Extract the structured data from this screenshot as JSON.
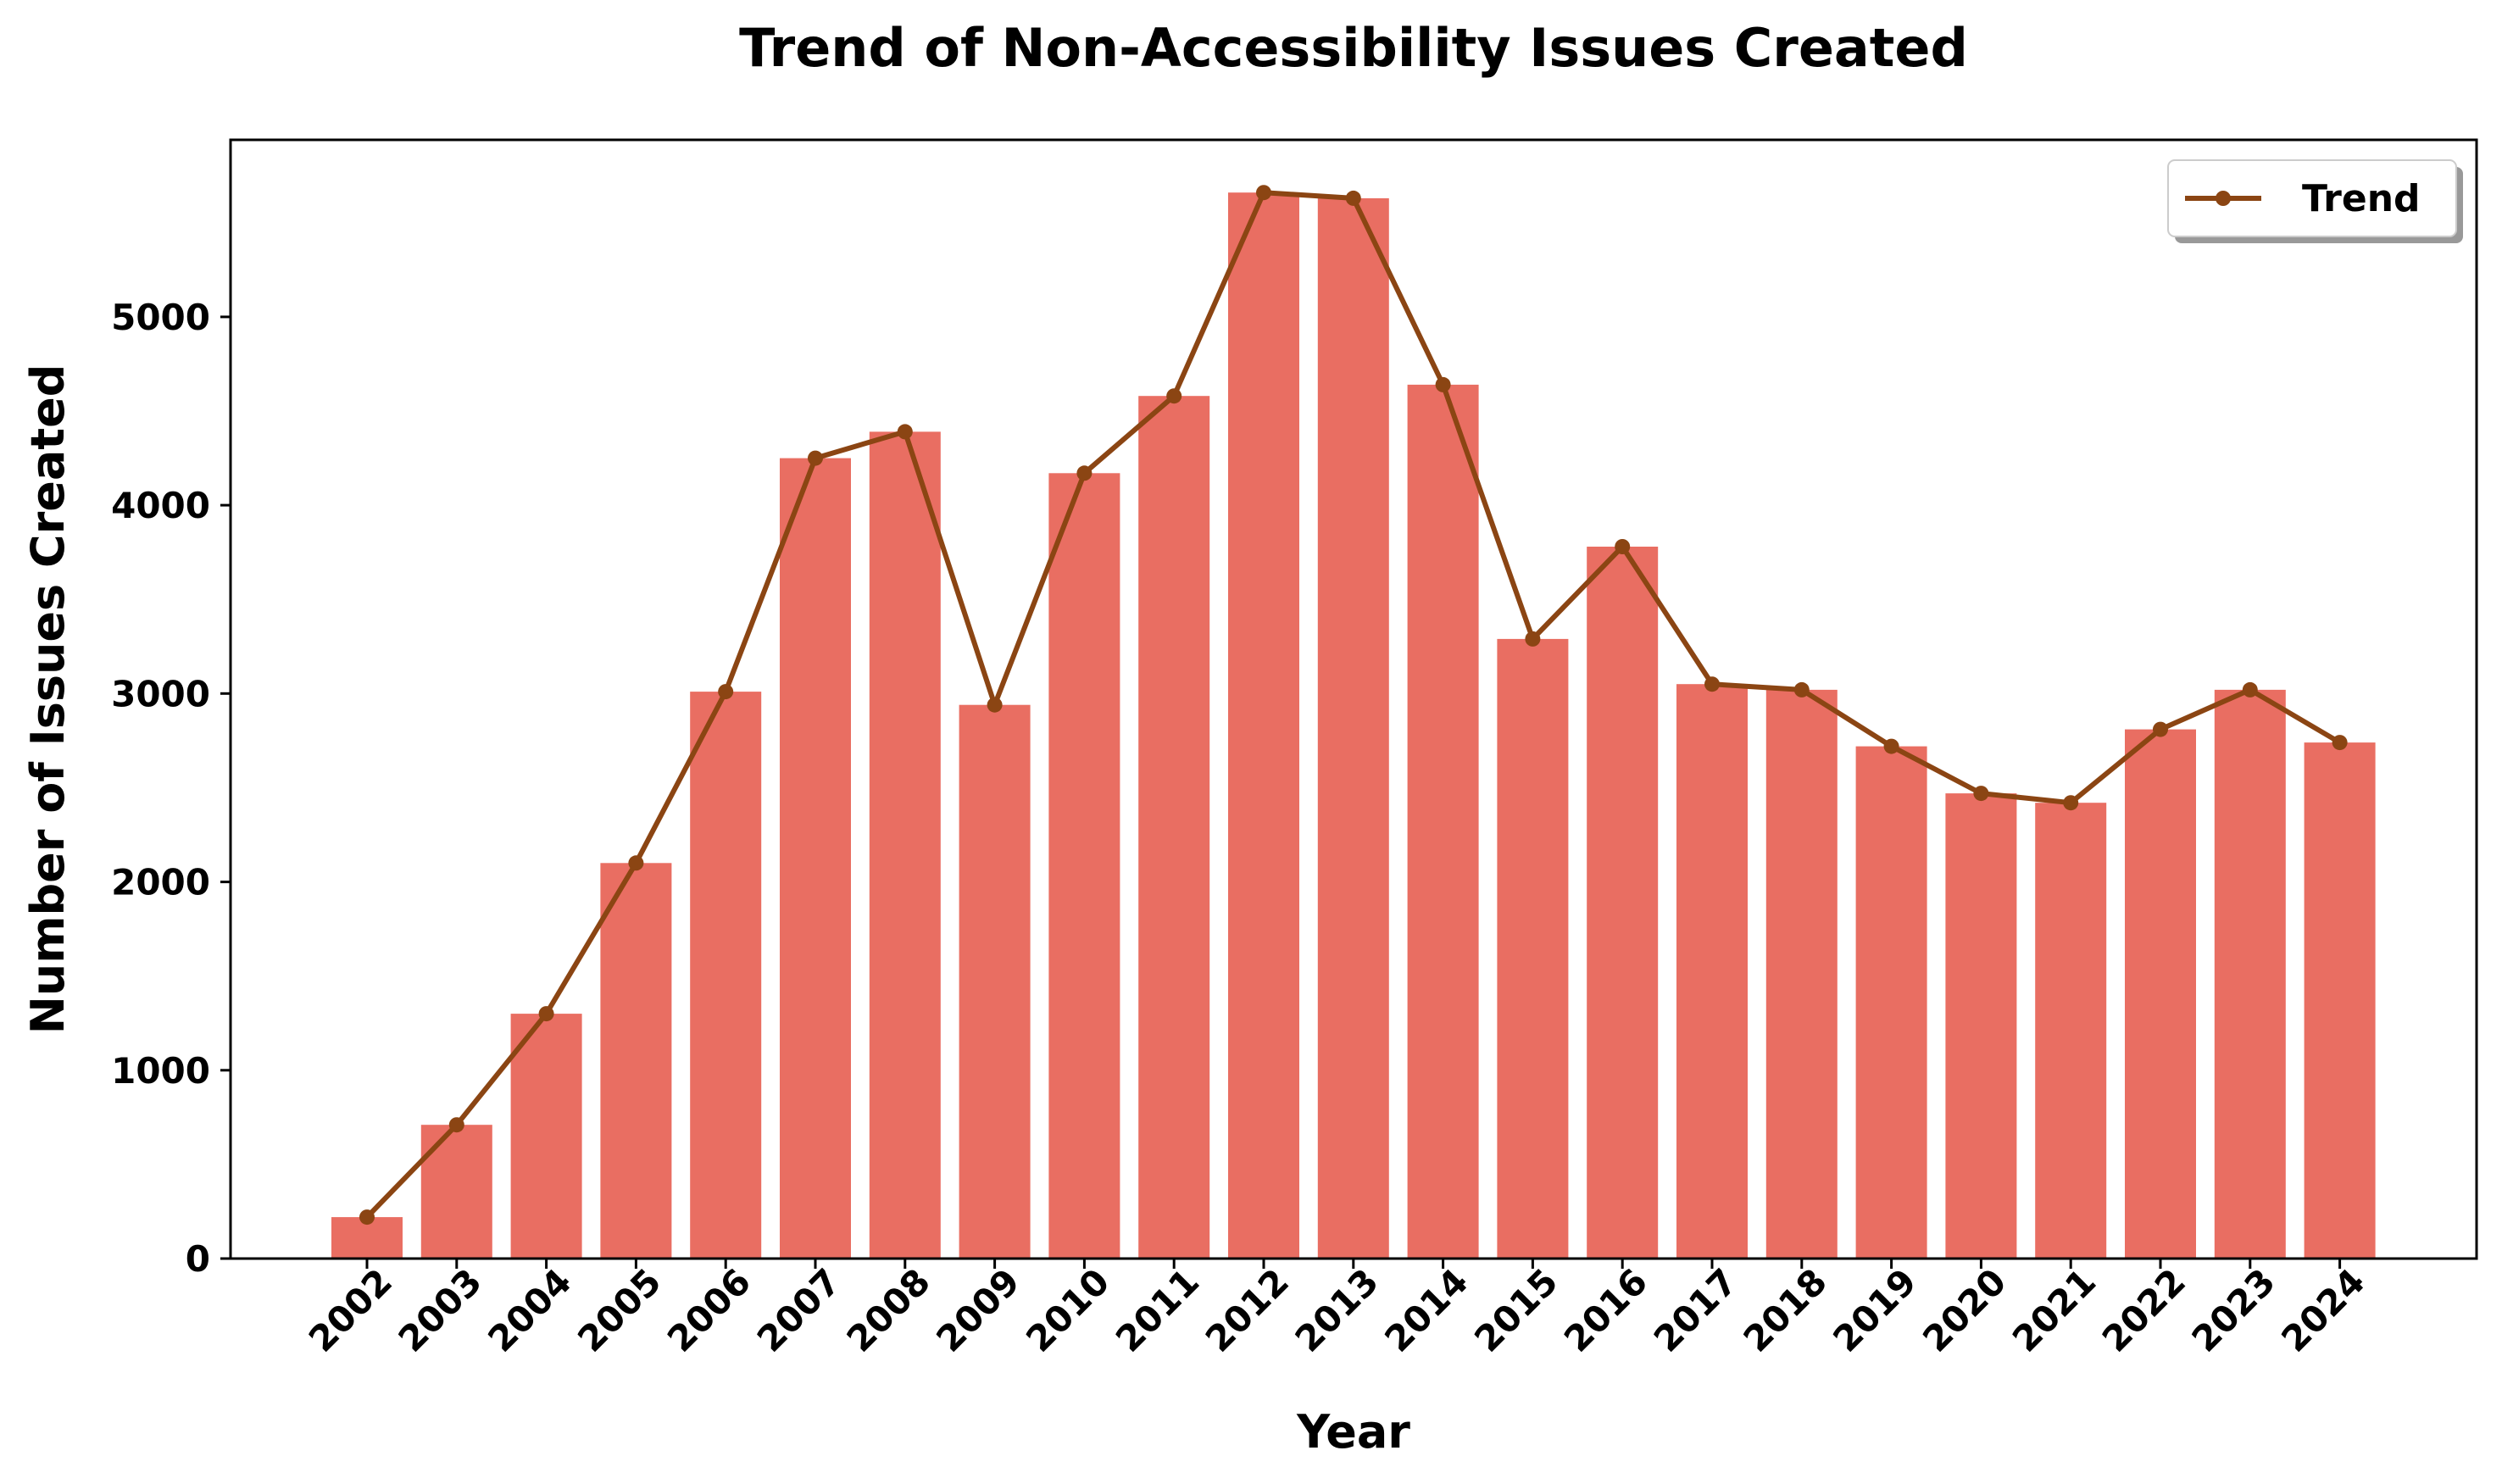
{
  "chart_data": {
    "type": "bar",
    "title": "Trend of Non-Accessibility Issues Created",
    "xlabel": "Year",
    "ylabel": "Number of Issues Created",
    "categories": [
      "2002",
      "2003",
      "2004",
      "2005",
      "2006",
      "2007",
      "2008",
      "2009",
      "2010",
      "2011",
      "2012",
      "2013",
      "2014",
      "2015",
      "2016",
      "2017",
      "2018",
      "2019",
      "2020",
      "2021",
      "2022",
      "2023",
      "2024"
    ],
    "values": [
      220,
      710,
      1300,
      2100,
      3010,
      4250,
      4390,
      2940,
      4170,
      4580,
      5660,
      5630,
      4640,
      3290,
      3780,
      3050,
      3020,
      2720,
      2470,
      2420,
      2810,
      3020,
      2740
    ],
    "ylim": [
      0,
      5940
    ],
    "yticks": [
      0,
      1000,
      2000,
      3000,
      4000,
      5000
    ],
    "grid": false,
    "legend": {
      "position": "top-right",
      "entries": [
        "Trend"
      ]
    },
    "series": [
      {
        "name": "Trend",
        "type": "line",
        "values": [
          220,
          710,
          1300,
          2100,
          3010,
          4250,
          4390,
          2940,
          4170,
          4580,
          5660,
          5630,
          4640,
          3290,
          3780,
          3050,
          3020,
          2720,
          2470,
          2420,
          2810,
          3020,
          2740
        ]
      }
    ],
    "colors": {
      "bar": "#e96e62",
      "line": "#8b4513"
    }
  }
}
